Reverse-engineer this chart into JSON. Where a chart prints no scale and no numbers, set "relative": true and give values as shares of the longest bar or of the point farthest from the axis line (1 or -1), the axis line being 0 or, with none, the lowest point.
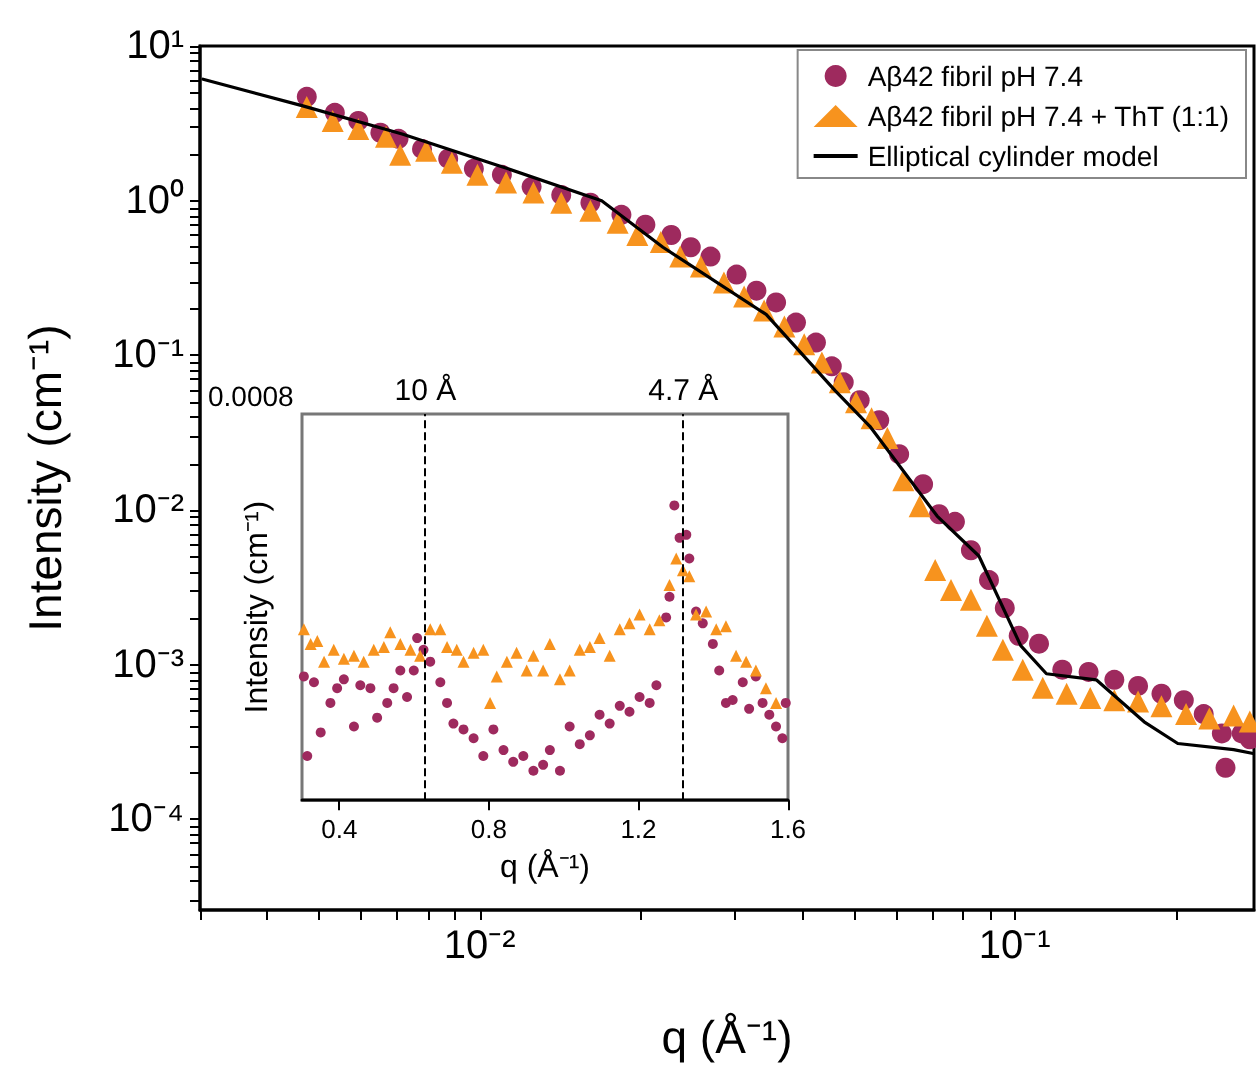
{
  "chart_data": [
    {
      "type": "scatter",
      "xlabel": "q (Å⁻¹)",
      "ylabel": "Intensity (cm⁻¹)",
      "log": "xy",
      "legend": "top right",
      "xlim": [
        0.003,
        0.28
      ],
      "ylim": [
        2.6e-05,
        10
      ],
      "xticks": [
        {
          "value": 0.003,
          "label": null
        },
        {
          "value": 0.004,
          "label": null
        },
        {
          "value": 0.005,
          "label": null
        },
        {
          "value": 0.006,
          "label": null
        },
        {
          "value": 0.007,
          "label": null
        },
        {
          "value": 0.008,
          "label": null
        },
        {
          "value": 0.009,
          "label": null
        },
        {
          "value": 0.01,
          "label": "10⁻²"
        },
        {
          "value": 0.02,
          "label": null
        },
        {
          "value": 0.03,
          "label": null
        },
        {
          "value": 0.04,
          "label": null
        },
        {
          "value": 0.05,
          "label": null
        },
        {
          "value": 0.06,
          "label": null
        },
        {
          "value": 0.07,
          "label": null
        },
        {
          "value": 0.08,
          "label": null
        },
        {
          "value": 0.09,
          "label": null
        },
        {
          "value": 0.1,
          "label": "10⁻¹"
        },
        {
          "value": 0.2,
          "label": null
        }
      ],
      "yticks": [
        {
          "value": 0.0001,
          "label": "10⁻⁴"
        },
        {
          "value": 0.001,
          "label": "10⁻³"
        },
        {
          "value": 0.01,
          "label": "10⁻²"
        },
        {
          "value": 0.1,
          "label": "10⁻¹"
        },
        {
          "value": 1,
          "label": "10⁰"
        },
        {
          "value": 10,
          "label": "10¹"
        },
        {
          "value": 3e-05,
          "label": null
        },
        {
          "value": 4e-05,
          "label": null
        },
        {
          "value": 5e-05,
          "label": null
        },
        {
          "value": 6e-05,
          "label": null
        },
        {
          "value": 7e-05,
          "label": null
        },
        {
          "value": 8e-05,
          "label": null
        },
        {
          "value": 9e-05,
          "label": null
        },
        {
          "value": 0.0002,
          "label": null
        },
        {
          "value": 0.0003,
          "label": null
        },
        {
          "value": 0.0004,
          "label": null
        },
        {
          "value": 0.0005,
          "label": null
        },
        {
          "value": 0.0006,
          "label": null
        },
        {
          "value": 0.0007,
          "label": null
        },
        {
          "value": 0.0008,
          "label": null
        },
        {
          "value": 0.0009,
          "label": null
        },
        {
          "value": 0.002,
          "label": null
        },
        {
          "value": 0.003,
          "label": null
        },
        {
          "value": 0.004,
          "label": null
        },
        {
          "value": 0.005,
          "label": null
        },
        {
          "value": 0.006,
          "label": null
        },
        {
          "value": 0.007,
          "label": null
        },
        {
          "value": 0.008,
          "label": null
        },
        {
          "value": 0.009,
          "label": null
        },
        {
          "value": 0.02,
          "label": null
        },
        {
          "value": 0.03,
          "label": null
        },
        {
          "value": 0.04,
          "label": null
        },
        {
          "value": 0.05,
          "label": null
        },
        {
          "value": 0.06,
          "label": null
        },
        {
          "value": 0.07,
          "label": null
        },
        {
          "value": 0.08,
          "label": null
        },
        {
          "value": 0.09,
          "label": null
        },
        {
          "value": 0.2,
          "label": null
        },
        {
          "value": 0.3,
          "label": null
        },
        {
          "value": 0.4,
          "label": null
        },
        {
          "value": 0.5,
          "label": null
        },
        {
          "value": 0.6,
          "label": null
        },
        {
          "value": 0.7,
          "label": null
        },
        {
          "value": 0.8,
          "label": null
        },
        {
          "value": 0.9,
          "label": null
        },
        {
          "value": 2,
          "label": null
        },
        {
          "value": 3,
          "label": null
        },
        {
          "value": 4,
          "label": null
        },
        {
          "value": 5,
          "label": null
        },
        {
          "value": 6,
          "label": null
        },
        {
          "value": 7,
          "label": null
        },
        {
          "value": 8,
          "label": null
        },
        {
          "value": 9,
          "label": null
        }
      ],
      "series": [
        {
          "name": "Aβ42 fibril pH 7.4",
          "color": "#9e2a5e",
          "marker": "circle",
          "x": [
            0.00475,
            0.00536,
            0.00593,
            0.00652,
            0.00705,
            0.0078,
            0.00873,
            0.00975,
            0.011,
            0.0125,
            0.0142,
            0.0161,
            0.0184,
            0.0204,
            0.0228,
            0.0248,
            0.027,
            0.0302,
            0.0329,
            0.0358,
            0.039,
            0.0425,
            0.0455,
            0.0479,
            0.0513,
            0.0558,
            0.0608,
            0.0674,
            0.0722,
            0.0773,
            0.0828,
            0.0895,
            0.0958,
            0.1017,
            0.111,
            0.1227,
            0.1374,
            0.1535,
            0.17,
            0.188,
            0.207,
            0.2255,
            0.2438,
            0.2477,
            0.2656,
            0.275
          ],
          "values": [
            4.69,
            3.7,
            3.28,
            2.75,
            2.51,
            2.16,
            1.87,
            1.61,
            1.47,
            1.23,
            1.09,
            0.97,
            0.81,
            0.7,
            0.6,
            0.5,
            0.435,
            0.333,
            0.262,
            0.22,
            0.163,
            0.121,
            0.085,
            0.067,
            0.0513,
            0.0381,
            0.023,
            0.0147,
            0.0094,
            0.0084,
            0.0055,
            0.00353,
            0.00233,
            0.00154,
            0.00137,
            0.00093,
            0.0009,
            0.0008,
            0.00073,
            0.00065,
            0.00059,
            0.00048,
            0.00036,
            0.000216,
            0.00036,
            0.00033
          ]
        },
        {
          "name": "Aβ42 fibril pH 7.4 + ThT (1:1)",
          "color": "#f7931e",
          "marker": "triangle",
          "x": [
            0.00475,
            0.00531,
            0.00593,
            0.00668,
            0.0071,
            0.00794,
            0.00887,
            0.0099,
            0.0112,
            0.0126,
            0.0142,
            0.0161,
            0.0181,
            0.0197,
            0.0218,
            0.0237,
            0.0259,
            0.0286,
            0.0312,
            0.034,
            0.0371,
            0.0404,
            0.0436,
            0.0471,
            0.0505,
            0.054,
            0.0578,
            0.0619,
            0.0664,
            0.071,
            0.076,
            0.0828,
            0.0887,
            0.095,
            0.1035,
            0.1128,
            0.125,
            0.1384,
            0.1535,
            0.17,
            0.188,
            0.209,
            0.231,
            0.2565,
            0.275
          ],
          "values": [
            4.04,
            3.28,
            2.91,
            2.59,
            1.98,
            2.1,
            1.76,
            1.47,
            1.31,
            1.13,
            0.97,
            0.86,
            0.72,
            0.6,
            0.54,
            0.435,
            0.375,
            0.296,
            0.24,
            0.195,
            0.154,
            0.118,
            0.09,
            0.067,
            0.0498,
            0.0393,
            0.0292,
            0.0156,
            0.0106,
            0.0041,
            0.00305,
            0.00263,
            0.00179,
            0.00125,
            0.00093,
            0.00071,
            0.00065,
            0.00061,
            0.00059,
            0.00058,
            0.00054,
            0.00048,
            0.00045,
            0.00047,
            0.00043
          ]
        },
        {
          "name": "Elliptical cylinder model",
          "type": "line",
          "color": "#000000",
          "marker": "none",
          "line_style": "solid",
          "x": [
            0.00304,
            0.00467,
            0.00716,
            0.011,
            0.0169,
            0.022,
            0.0343,
            0.0462,
            0.0536,
            0.0716,
            0.0857,
            0.1026,
            0.1146,
            0.142,
            0.1745,
            0.2017,
            0.2565,
            0.279
          ],
          "values": [
            6.1,
            4.1,
            2.7,
            1.66,
            1.0,
            0.5,
            0.184,
            0.059,
            0.0348,
            0.00915,
            0.00505,
            0.00133,
            0.000875,
            0.0008,
            0.000428,
            0.00031,
            0.000283,
            0.000267
          ]
        }
      ]
    },
    {
      "type": "scatter",
      "relative": true,
      "xlabel": "q (Å⁻¹)",
      "ylabel": "Intensity (cm⁻¹)",
      "annotations": [
        "0.0008"
      ],
      "xlim": [
        0.3,
        1.6
      ],
      "xticks": [
        0.4,
        0.8,
        1.2,
        1.6
      ],
      "ref_lines": [
        {
          "axis": "x",
          "value": 0.63,
          "label": "10 Å",
          "color": "#000000",
          "line_style": "dashed"
        },
        {
          "axis": "x",
          "value": 1.32,
          "label": "4.7 Å",
          "color": "#000000",
          "line_style": "dashed"
        }
      ],
      "series": [
        {
          "color": "#9e2a5e",
          "marker": "circle",
          "x": [
            0.305,
            0.314,
            0.332,
            0.35,
            0.376,
            0.394,
            0.412,
            0.439,
            0.456,
            0.483,
            0.501,
            0.528,
            0.545,
            0.563,
            0.581,
            0.599,
            0.608,
            0.625,
            0.643,
            0.67,
            0.688,
            0.705,
            0.732,
            0.759,
            0.785,
            0.812,
            0.839,
            0.865,
            0.892,
            0.919,
            0.945,
            0.963,
            0.99,
            1.016,
            1.043,
            1.07,
            1.096,
            1.123,
            1.15,
            1.176,
            1.203,
            1.23,
            1.248,
            1.274,
            1.283,
            1.296,
            1.31,
            1.328,
            1.336,
            1.354,
            1.372,
            1.399,
            1.416,
            1.434,
            1.452,
            1.479,
            1.496,
            1.514,
            1.532,
            1.55,
            1.568,
            1.585,
            1.594
          ],
          "values": [
            0.42,
            0.15,
            0.4,
            0.23,
            0.33,
            0.38,
            0.41,
            0.25,
            0.39,
            0.38,
            0.28,
            0.33,
            0.38,
            0.44,
            0.35,
            0.44,
            0.55,
            0.51,
            0.47,
            0.4,
            0.33,
            0.26,
            0.24,
            0.21,
            0.15,
            0.24,
            0.17,
            0.13,
            0.15,
            0.1,
            0.12,
            0.17,
            0.1,
            0.25,
            0.19,
            0.22,
            0.29,
            0.26,
            0.32,
            0.3,
            0.35,
            0.33,
            0.39,
            0.62,
            0.69,
            1,
            0.89,
            0.9,
            0.82,
            0.64,
            0.6,
            0.53,
            0.44,
            0.33,
            0.34,
            0.4,
            0.31,
            0.42,
            0.33,
            0.29,
            0.25,
            0.21,
            0.33
          ]
        },
        {
          "color": "#f7931e",
          "marker": "triangle",
          "x": [
            0.305,
            0.323,
            0.341,
            0.359,
            0.385,
            0.412,
            0.439,
            0.465,
            0.492,
            0.519,
            0.536,
            0.563,
            0.59,
            0.616,
            0.643,
            0.67,
            0.688,
            0.714,
            0.732,
            0.759,
            0.785,
            0.803,
            0.821,
            0.848,
            0.874,
            0.901,
            0.919,
            0.945,
            0.963,
            0.99,
            1.016,
            1.043,
            1.07,
            1.096,
            1.123,
            1.15,
            1.176,
            1.203,
            1.23,
            1.256,
            1.283,
            1.301,
            1.319,
            1.336,
            1.354,
            1.381,
            1.408,
            1.434,
            1.461,
            1.488,
            1.514,
            1.541,
            1.568
          ],
          "values": [
            0.58,
            0.53,
            0.54,
            0.47,
            0.51,
            0.48,
            0.49,
            0.47,
            0.51,
            0.52,
            0.57,
            0.53,
            0.51,
            0.49,
            0.58,
            0.58,
            0.52,
            0.51,
            0.47,
            0.5,
            0.51,
            0.33,
            0.42,
            0.47,
            0.5,
            0.44,
            0.49,
            0.44,
            0.53,
            0.41,
            0.44,
            0.51,
            0.52,
            0.55,
            0.49,
            0.58,
            0.6,
            0.63,
            0.58,
            0.61,
            0.73,
            0.82,
            0.78,
            0.76,
            0.63,
            0.64,
            0.58,
            0.59,
            0.49,
            0.47,
            0.44,
            0.38,
            0.33
          ]
        }
      ]
    }
  ]
}
